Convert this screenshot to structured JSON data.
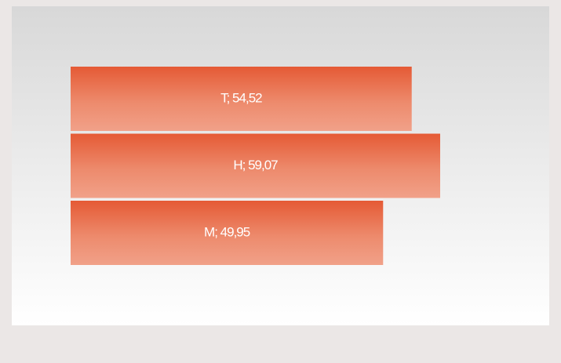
{
  "chart_data": {
    "type": "bar",
    "orientation": "horizontal",
    "categories": [
      "T",
      "H",
      "M"
    ],
    "values": [
      54.52,
      59.07,
      49.95
    ],
    "value_labels": [
      "T; 54,52",
      "H; 59,07",
      "M; 49,95"
    ],
    "color": "#e55a35"
  }
}
